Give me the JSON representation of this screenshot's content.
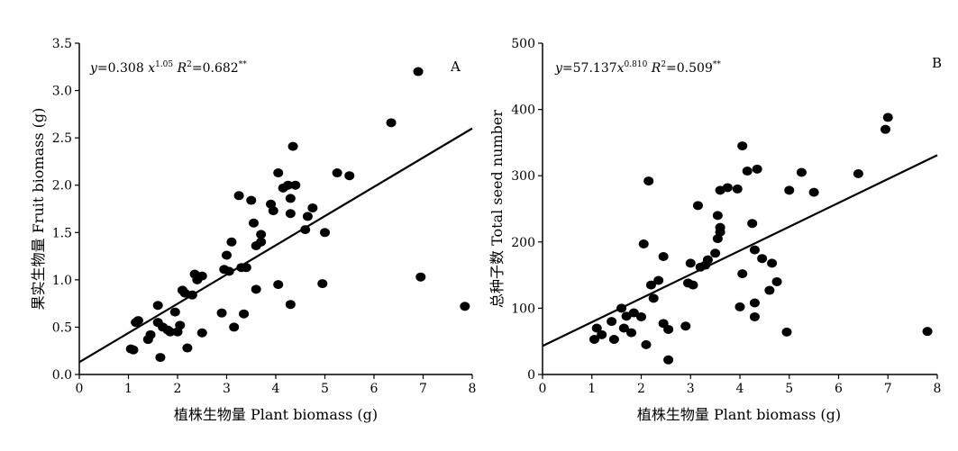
{
  "chart_data": [
    {
      "type": "scatter",
      "panel_label": "A",
      "equation": "y=0.308 x^1.05 R²=0.682**",
      "xlabel": "植株生物量 Plant biomass (g)",
      "ylabel": "果实生物量 Fruit biomass (g)",
      "xlim": [
        0,
        8
      ],
      "ylim": [
        0,
        3.5
      ],
      "xticks": [
        "0",
        "1",
        "2",
        "3",
        "4",
        "5",
        "6",
        "7",
        "8"
      ],
      "yticks": [
        "0.0",
        "0.5",
        "1.0",
        "1.5",
        "2.0",
        "2.5",
        "3.0",
        "3.5"
      ],
      "fit_line": {
        "x": [
          0,
          8
        ],
        "y": [
          0.13,
          2.6
        ]
      },
      "points": [
        [
          1.05,
          0.27
        ],
        [
          1.1,
          0.26
        ],
        [
          1.15,
          0.55
        ],
        [
          1.2,
          0.57
        ],
        [
          1.4,
          0.37
        ],
        [
          1.45,
          0.42
        ],
        [
          1.6,
          0.73
        ],
        [
          1.6,
          0.55
        ],
        [
          1.65,
          0.18
        ],
        [
          1.7,
          0.5
        ],
        [
          1.8,
          0.47
        ],
        [
          1.85,
          0.45
        ],
        [
          1.95,
          0.66
        ],
        [
          2.0,
          0.45
        ],
        [
          2.05,
          0.52
        ],
        [
          2.1,
          0.89
        ],
        [
          2.15,
          0.86
        ],
        [
          2.2,
          0.28
        ],
        [
          2.3,
          0.84
        ],
        [
          2.35,
          1.06
        ],
        [
          2.4,
          1.0
        ],
        [
          2.5,
          1.04
        ],
        [
          2.5,
          0.44
        ],
        [
          2.9,
          0.65
        ],
        [
          2.95,
          1.11
        ],
        [
          3.0,
          1.26
        ],
        [
          3.05,
          1.09
        ],
        [
          3.1,
          1.4
        ],
        [
          3.15,
          0.5
        ],
        [
          3.25,
          1.89
        ],
        [
          3.3,
          1.13
        ],
        [
          3.35,
          0.64
        ],
        [
          3.4,
          1.13
        ],
        [
          3.5,
          1.84
        ],
        [
          3.55,
          1.6
        ],
        [
          3.6,
          1.36
        ],
        [
          3.6,
          0.9
        ],
        [
          3.7,
          1.48
        ],
        [
          3.7,
          1.4
        ],
        [
          3.9,
          1.8
        ],
        [
          3.95,
          1.73
        ],
        [
          4.05,
          2.13
        ],
        [
          4.05,
          0.95
        ],
        [
          4.15,
          1.97
        ],
        [
          4.25,
          2.0
        ],
        [
          4.3,
          1.86
        ],
        [
          4.3,
          1.7
        ],
        [
          4.3,
          0.74
        ],
        [
          4.35,
          2.41
        ],
        [
          4.4,
          2.0
        ],
        [
          4.6,
          1.53
        ],
        [
          4.65,
          1.67
        ],
        [
          4.75,
          1.76
        ],
        [
          4.95,
          0.96
        ],
        [
          5.0,
          1.5
        ],
        [
          5.25,
          2.13
        ],
        [
          5.5,
          2.1
        ],
        [
          6.35,
          2.66
        ],
        [
          6.9,
          3.2
        ],
        [
          6.95,
          1.03
        ],
        [
          7.85,
          0.72
        ]
      ]
    },
    {
      "type": "scatter",
      "panel_label": "B",
      "equation": "y=57.137x^0.810 R²=0.509**",
      "xlabel": "植株生物量 Plant biomass (g)",
      "ylabel": "总种子数 Total seed number",
      "xlim": [
        0,
        8
      ],
      "ylim": [
        0,
        500
      ],
      "xticks": [
        "0",
        "1",
        "2",
        "3",
        "4",
        "5",
        "6",
        "7",
        "8"
      ],
      "yticks": [
        "0",
        "100",
        "200",
        "300",
        "400",
        "500"
      ],
      "fit_line": {
        "x": [
          0,
          8
        ],
        "y": [
          43,
          331
        ]
      },
      "points": [
        [
          1.05,
          53
        ],
        [
          1.1,
          70
        ],
        [
          1.2,
          60
        ],
        [
          1.4,
          80
        ],
        [
          1.45,
          53
        ],
        [
          1.6,
          100
        ],
        [
          1.65,
          70
        ],
        [
          1.7,
          88
        ],
        [
          1.8,
          63
        ],
        [
          1.85,
          93
        ],
        [
          2.0,
          87
        ],
        [
          2.05,
          197
        ],
        [
          2.1,
          45
        ],
        [
          2.15,
          292
        ],
        [
          2.2,
          135
        ],
        [
          2.25,
          115
        ],
        [
          2.35,
          142
        ],
        [
          2.45,
          178
        ],
        [
          2.45,
          77
        ],
        [
          2.55,
          68
        ],
        [
          2.55,
          22
        ],
        [
          2.9,
          73
        ],
        [
          2.95,
          138
        ],
        [
          3.0,
          168
        ],
        [
          3.05,
          135
        ],
        [
          3.15,
          255
        ],
        [
          3.2,
          162
        ],
        [
          3.3,
          165
        ],
        [
          3.35,
          173
        ],
        [
          3.5,
          183
        ],
        [
          3.55,
          240
        ],
        [
          3.55,
          205
        ],
        [
          3.6,
          222
        ],
        [
          3.6,
          215
        ],
        [
          3.6,
          278
        ],
        [
          3.75,
          282
        ],
        [
          3.95,
          280
        ],
        [
          4.0,
          102
        ],
        [
          4.05,
          345
        ],
        [
          4.05,
          152
        ],
        [
          4.15,
          307
        ],
        [
          4.25,
          228
        ],
        [
          4.3,
          188
        ],
        [
          4.3,
          108
        ],
        [
          4.3,
          87
        ],
        [
          4.35,
          310
        ],
        [
          4.45,
          175
        ],
        [
          4.6,
          127
        ],
        [
          4.65,
          168
        ],
        [
          4.75,
          140
        ],
        [
          4.95,
          64
        ],
        [
          5.0,
          278
        ],
        [
          5.25,
          305
        ],
        [
          5.5,
          275
        ],
        [
          6.4,
          303
        ],
        [
          6.95,
          370
        ],
        [
          7.0,
          388
        ],
        [
          7.8,
          65
        ]
      ]
    }
  ]
}
